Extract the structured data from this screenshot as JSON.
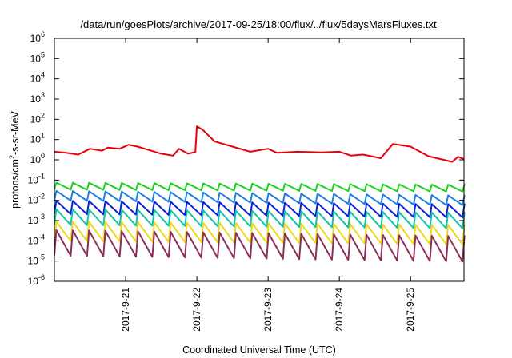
{
  "chart_data": {
    "type": "line",
    "title": "/data/run/goesPlots/archive/2017-09-25/18:00/flux/../flux/5daysMarsFluxes.txt",
    "xlabel": "Coordinated Universal Time (UTC)",
    "ylabel_parts": [
      "protons/cm",
      "2",
      "-s-sr-MeV"
    ],
    "y_scale": "log",
    "ylim": [
      1e-06,
      1000000.0
    ],
    "y_ticks": [
      {
        "base": "10",
        "exp": "-6",
        "value": 1e-06
      },
      {
        "base": "10",
        "exp": "-5",
        "value": 1e-05
      },
      {
        "base": "10",
        "exp": "-4",
        "value": 0.0001
      },
      {
        "base": "10",
        "exp": "-3",
        "value": 0.001
      },
      {
        "base": "10",
        "exp": "-2",
        "value": 0.01
      },
      {
        "base": "10",
        "exp": "-1",
        "value": 0.1
      },
      {
        "base": "10",
        "exp": "0",
        "value": 1
      },
      {
        "base": "10",
        "exp": "1",
        "value": 10
      },
      {
        "base": "10",
        "exp": "2",
        "value": 100
      },
      {
        "base": "10",
        "exp": "3",
        "value": 1000
      },
      {
        "base": "10",
        "exp": "4",
        "value": 10000
      },
      {
        "base": "10",
        "exp": "5",
        "value": 100000
      },
      {
        "base": "10",
        "exp": "6",
        "value": 1000000
      }
    ],
    "xlim": [
      "2017-09-20 00:00",
      "2017-09-25 18:00"
    ],
    "x_ticks": [
      {
        "label": "2017-9-21",
        "value": "2017-09-21 00:00"
      },
      {
        "label": "2017-9-22",
        "value": "2017-09-22 00:00"
      },
      {
        "label": "2017-9-23",
        "value": "2017-09-23 00:00"
      },
      {
        "label": "2017-9-24",
        "value": "2017-09-24 00:00"
      },
      {
        "label": "2017-9-25",
        "value": "2017-09-25 00:00"
      }
    ],
    "grid": false,
    "legend": "none",
    "series": [
      {
        "color": "#e8000b",
        "x": [
          "2017-09-20 00:00",
          "2017-09-20 04:00",
          "2017-09-20 08:00",
          "2017-09-20 12:00",
          "2017-09-20 16:00",
          "2017-09-20 18:00",
          "2017-09-20 22:00",
          "2017-09-21 01:00",
          "2017-09-21 04:00",
          "2017-09-21 08:00",
          "2017-09-21 12:00",
          "2017-09-21 16:00",
          "2017-09-21 18:00",
          "2017-09-21 21:00",
          "2017-09-21 23:30",
          "2017-09-22 00:00",
          "2017-09-22 02:00",
          "2017-09-22 06:00",
          "2017-09-22 12:00",
          "2017-09-22 18:00",
          "2017-09-23 00:00",
          "2017-09-23 03:00",
          "2017-09-23 10:00",
          "2017-09-23 18:00",
          "2017-09-24 00:00",
          "2017-09-24 04:00",
          "2017-09-24 08:00",
          "2017-09-24 14:00",
          "2017-09-24 18:00",
          "2017-09-24 20:00",
          "2017-09-25 00:00",
          "2017-09-25 06:00",
          "2017-09-25 10:00",
          "2017-09-25 14:00",
          "2017-09-25 16:00",
          "2017-09-25 18:00"
        ],
        "values": [
          2.5,
          2.2,
          1.8,
          3.5,
          2.8,
          4.0,
          3.5,
          5.5,
          4.5,
          3.0,
          2.0,
          1.6,
          3.5,
          2.0,
          2.4,
          45,
          30,
          8,
          4.5,
          2.5,
          3.5,
          2.2,
          2.5,
          2.3,
          2.5,
          1.6,
          1.8,
          1.2,
          6.0,
          5.5,
          4.5,
          1.5,
          1.1,
          0.8,
          1.4,
          1.1
        ]
      },
      {
        "color": "#1ed01e",
        "center": 0.05,
        "amplitude": 2.2,
        "trend_end": 0.04
      },
      {
        "color": "#1e7fe6",
        "center": 0.017,
        "amplitude": 3.0,
        "trend_end": 0.01
      },
      {
        "color": "#0a20d8",
        "center": 0.0045,
        "amplitude": 4.5,
        "trend_end": 0.003
      },
      {
        "color": "#12c4a8",
        "center": 0.0015,
        "amplitude": 6.0,
        "trend_end": 0.001
      },
      {
        "color": "#f0d81a",
        "center": 0.0003,
        "amplitude": 9.0,
        "trend_end": 0.0002
      },
      {
        "color": "#8b2f5a",
        "center": 8e-05,
        "amplitude": 18.0,
        "trend_end": 4e-05
      }
    ]
  }
}
